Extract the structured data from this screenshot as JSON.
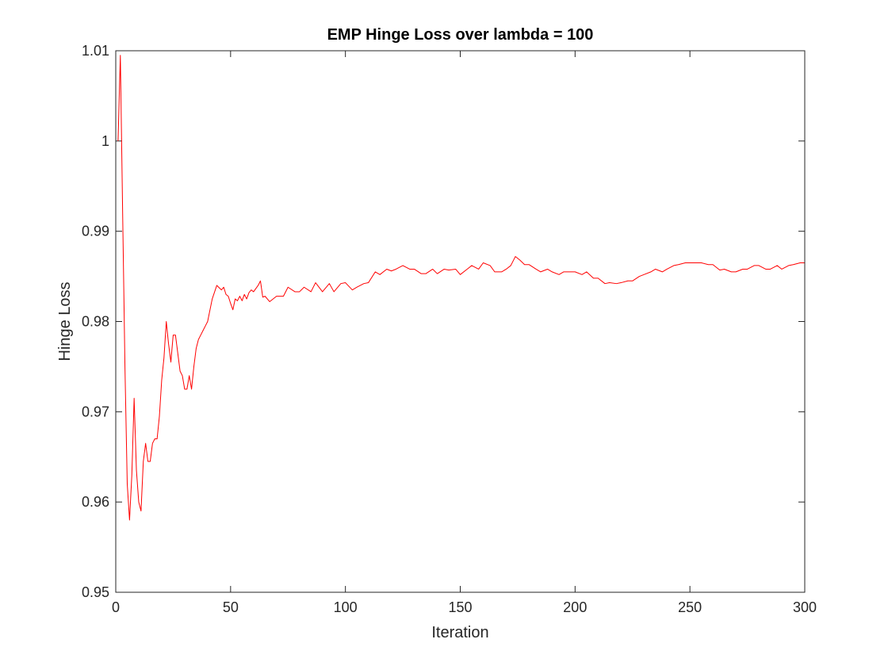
{
  "chart_data": {
    "type": "line",
    "title": "EMP Hinge Loss over lambda = 100",
    "xlabel": "Iteration",
    "ylabel": "Hinge Loss",
    "xlim": [
      0,
      300
    ],
    "ylim": [
      0.95,
      1.01
    ],
    "xticks": [
      0,
      50,
      100,
      150,
      200,
      250,
      300
    ],
    "xtick_labels": [
      "0",
      "50",
      "100",
      "150",
      "200",
      "250",
      "300"
    ],
    "yticks": [
      0.95,
      0.96,
      0.97,
      0.98,
      0.99,
      1.0,
      1.01
    ],
    "ytick_labels": [
      "0.95",
      "0.96",
      "0.97",
      "0.98",
      "0.99",
      "1",
      "1.01"
    ],
    "grid": false,
    "line_color": "#ff0000",
    "series": [
      {
        "x": [
          1,
          2,
          3,
          4,
          5,
          6,
          7,
          8,
          9,
          10,
          11,
          12,
          13,
          14,
          15,
          16,
          17,
          18,
          19,
          20,
          21,
          22,
          23,
          24,
          25,
          26,
          27,
          28,
          29,
          30,
          31,
          32,
          33,
          34,
          35,
          36,
          37,
          38,
          39,
          40,
          42,
          44,
          46,
          47,
          48,
          49,
          50,
          51,
          52,
          53,
          54,
          55,
          56,
          57,
          58,
          59,
          60,
          62,
          63,
          64,
          65,
          67,
          70,
          73,
          75,
          78,
          80,
          82,
          85,
          87,
          90,
          93,
          95,
          98,
          100,
          103,
          105,
          108,
          110,
          113,
          115,
          118,
          120,
          122,
          125,
          128,
          130,
          133,
          135,
          138,
          140,
          143,
          145,
          148,
          150,
          153,
          155,
          158,
          160,
          163,
          165,
          168,
          170,
          172,
          174,
          176,
          178,
          180,
          183,
          185,
          188,
          190,
          193,
          195,
          198,
          200,
          203,
          205,
          208,
          210,
          213,
          215,
          218,
          220,
          223,
          225,
          228,
          230,
          233,
          235,
          238,
          240,
          243,
          245,
          248,
          250,
          253,
          255,
          258,
          260,
          263,
          265,
          268,
          270,
          273,
          275,
          278,
          280,
          283,
          285,
          288,
          290,
          293,
          295,
          298,
          300
        ],
        "y": [
          1.0,
          1.0095,
          0.992,
          0.975,
          0.962,
          0.958,
          0.963,
          0.9715,
          0.9635,
          0.96,
          0.959,
          0.9645,
          0.9665,
          0.9645,
          0.9645,
          0.9665,
          0.967,
          0.967,
          0.9695,
          0.9735,
          0.976,
          0.98,
          0.9775,
          0.9755,
          0.9785,
          0.9785,
          0.9765,
          0.9745,
          0.974,
          0.9725,
          0.9725,
          0.974,
          0.9725,
          0.975,
          0.977,
          0.978,
          0.9785,
          0.979,
          0.9795,
          0.98,
          0.9825,
          0.984,
          0.9835,
          0.9838,
          0.983,
          0.9828,
          0.982,
          0.9813,
          0.9825,
          0.9823,
          0.9828,
          0.9823,
          0.983,
          0.9825,
          0.9832,
          0.9835,
          0.9833,
          0.984,
          0.9845,
          0.9827,
          0.9828,
          0.9822,
          0.9828,
          0.9828,
          0.9838,
          0.9833,
          0.9833,
          0.9838,
          0.9833,
          0.9843,
          0.9833,
          0.9842,
          0.9833,
          0.9842,
          0.9843,
          0.9835,
          0.9838,
          0.9842,
          0.9843,
          0.9855,
          0.9852,
          0.9858,
          0.9856,
          0.9858,
          0.9862,
          0.9858,
          0.9858,
          0.9853,
          0.9853,
          0.9858,
          0.9853,
          0.9858,
          0.9857,
          0.9858,
          0.9852,
          0.9858,
          0.9862,
          0.9858,
          0.9865,
          0.9862,
          0.9855,
          0.9855,
          0.9858,
          0.9862,
          0.9872,
          0.9868,
          0.9863,
          0.9863,
          0.9858,
          0.9855,
          0.9858,
          0.9855,
          0.9852,
          0.9855,
          0.9855,
          0.9855,
          0.9852,
          0.9855,
          0.9848,
          0.9848,
          0.9842,
          0.9843,
          0.9842,
          0.9843,
          0.9845,
          0.9845,
          0.985,
          0.9852,
          0.9855,
          0.9858,
          0.9855,
          0.9858,
          0.9862,
          0.9863,
          0.9865,
          0.9865,
          0.9865,
          0.9865,
          0.9863,
          0.9863,
          0.9857,
          0.9858,
          0.9855,
          0.9855,
          0.9858,
          0.9858,
          0.9862,
          0.9862,
          0.9858,
          0.9858,
          0.9862,
          0.9858,
          0.9862,
          0.9863,
          0.9865,
          0.9865
        ]
      }
    ]
  }
}
